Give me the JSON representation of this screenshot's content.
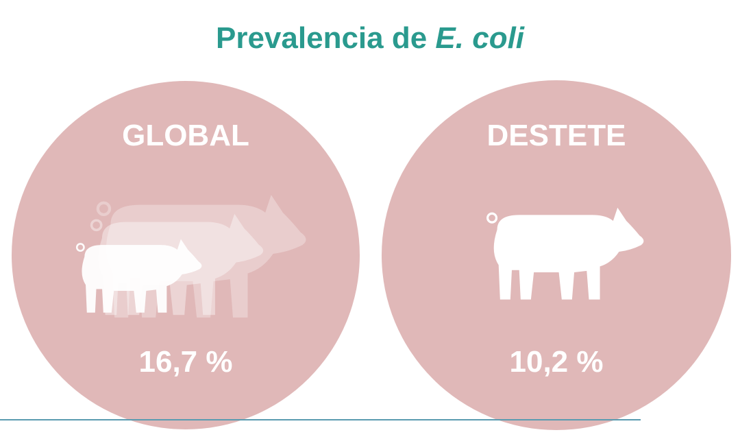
{
  "title": {
    "prefix": "Prevalencia de",
    "species": "E. coli"
  },
  "groups": [
    {
      "label": "GLOBAL",
      "value": "16,7 %"
    },
    {
      "label": "DESTETE",
      "value": "10,2 %"
    }
  ]
}
